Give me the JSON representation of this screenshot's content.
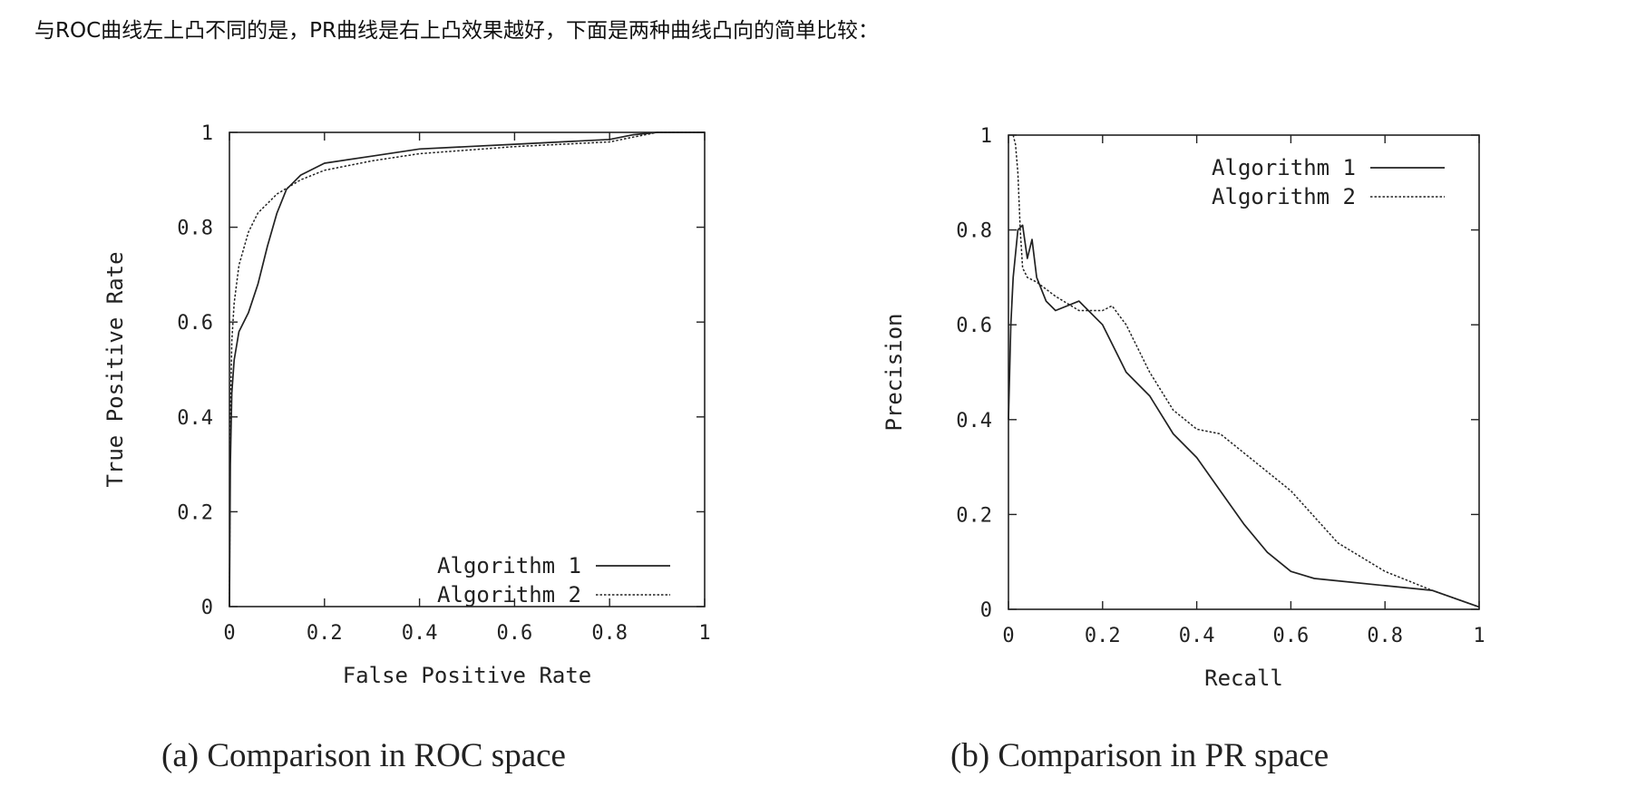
{
  "intro_text": "与ROC曲线左上凸不同的是，PR曲线是右上凸效果越好，下面是两种曲线凸向的简单比较：",
  "captions": {
    "a": "(a) Comparison in ROC space",
    "b": "(b) Comparison in PR space"
  },
  "chart_data": [
    {
      "type": "line",
      "xlabel": "False Positive Rate",
      "ylabel": "True Positive Rate",
      "xlim": [
        0,
        1
      ],
      "ylim": [
        0,
        1
      ],
      "xticks": [
        "0",
        "0.2",
        "0.4",
        "0.6",
        "0.8",
        "1"
      ],
      "yticks": [
        "0",
        "0.2",
        "0.4",
        "0.6",
        "0.8",
        "1"
      ],
      "grid": false,
      "legend_position": "bottom-right",
      "series": [
        {
          "name": "Algorithm 1",
          "style": "solid",
          "x": [
            0,
            0.002,
            0.005,
            0.01,
            0.02,
            0.04,
            0.06,
            0.08,
            0.1,
            0.12,
            0.15,
            0.2,
            0.3,
            0.4,
            0.6,
            0.8,
            0.85,
            0.9,
            1.0
          ],
          "y": [
            0,
            0.3,
            0.45,
            0.52,
            0.58,
            0.62,
            0.68,
            0.76,
            0.83,
            0.88,
            0.91,
            0.935,
            0.95,
            0.965,
            0.975,
            0.985,
            0.995,
            1.0,
            1.0
          ]
        },
        {
          "name": "Algorithm 2",
          "style": "dotted",
          "x": [
            0,
            0.002,
            0.005,
            0.01,
            0.02,
            0.04,
            0.06,
            0.1,
            0.15,
            0.2,
            0.3,
            0.4,
            0.6,
            0.8,
            0.85,
            0.9,
            1.0
          ],
          "y": [
            0,
            0.4,
            0.56,
            0.64,
            0.72,
            0.79,
            0.83,
            0.87,
            0.9,
            0.92,
            0.94,
            0.955,
            0.97,
            0.98,
            0.99,
            1.0,
            1.0
          ]
        }
      ]
    },
    {
      "type": "line",
      "xlabel": "Recall",
      "ylabel": "Precision",
      "xlim": [
        0,
        1
      ],
      "ylim": [
        0,
        1
      ],
      "xticks": [
        "0",
        "0.2",
        "0.4",
        "0.6",
        "0.8",
        "1"
      ],
      "yticks": [
        "0",
        "0.2",
        "0.4",
        "0.6",
        "0.8",
        "1"
      ],
      "grid": false,
      "legend_position": "top-right",
      "series": [
        {
          "name": "Algorithm 1",
          "style": "solid",
          "x": [
            0,
            0.005,
            0.01,
            0.02,
            0.03,
            0.04,
            0.05,
            0.06,
            0.08,
            0.1,
            0.15,
            0.2,
            0.25,
            0.3,
            0.35,
            0.4,
            0.45,
            0.5,
            0.55,
            0.6,
            0.65,
            0.7,
            0.8,
            0.9,
            1.0
          ],
          "y": [
            0.4,
            0.6,
            0.7,
            0.8,
            0.81,
            0.74,
            0.78,
            0.7,
            0.65,
            0.63,
            0.65,
            0.6,
            0.5,
            0.45,
            0.37,
            0.32,
            0.25,
            0.18,
            0.12,
            0.08,
            0.065,
            0.06,
            0.05,
            0.04,
            0.005
          ]
        },
        {
          "name": "Algorithm 2",
          "style": "dotted",
          "x": [
            0.01,
            0.015,
            0.02,
            0.025,
            0.03,
            0.04,
            0.06,
            0.1,
            0.15,
            0.2,
            0.22,
            0.25,
            0.3,
            0.35,
            0.4,
            0.45,
            0.5,
            0.6,
            0.7,
            0.8,
            0.9,
            1.0
          ],
          "y": [
            1.0,
            0.98,
            0.92,
            0.8,
            0.72,
            0.7,
            0.69,
            0.66,
            0.63,
            0.63,
            0.64,
            0.6,
            0.5,
            0.42,
            0.38,
            0.37,
            0.33,
            0.25,
            0.14,
            0.08,
            0.04,
            0.005
          ]
        }
      ]
    }
  ]
}
